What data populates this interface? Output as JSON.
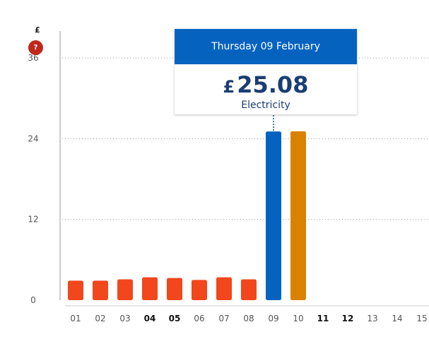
{
  "colors": {
    "past": "#f2461d",
    "selected": "#0563bf",
    "today": "#d98200",
    "axis": "#999999",
    "grid": "#9a9a9a",
    "tick": "#555555",
    "tick_bold": "#111111"
  },
  "legend": {
    "currency_symbol": "£",
    "help_label": "?"
  },
  "tooltip": {
    "date": "Thursday 09 February",
    "currency": "£",
    "amount": "25.08",
    "fuel": "Electricity"
  },
  "chart_data": {
    "type": "bar",
    "title": "",
    "xlabel": "",
    "ylabel": "£",
    "ylim": [
      0,
      40
    ],
    "yticks": [
      0,
      12,
      24,
      36
    ],
    "grid": true,
    "categories": [
      "01",
      "02",
      "03",
      "04",
      "05",
      "06",
      "07",
      "08",
      "09",
      "10",
      "11",
      "12",
      "13",
      "14",
      "15"
    ],
    "bold_categories": [
      "04",
      "05",
      "11",
      "12"
    ],
    "values": [
      2.9,
      2.9,
      3.1,
      3.4,
      3.3,
      3.0,
      3.4,
      3.1,
      25.08,
      25.1,
      null,
      null,
      null,
      null,
      null
    ],
    "selected_category": "09",
    "today_category": "10"
  }
}
